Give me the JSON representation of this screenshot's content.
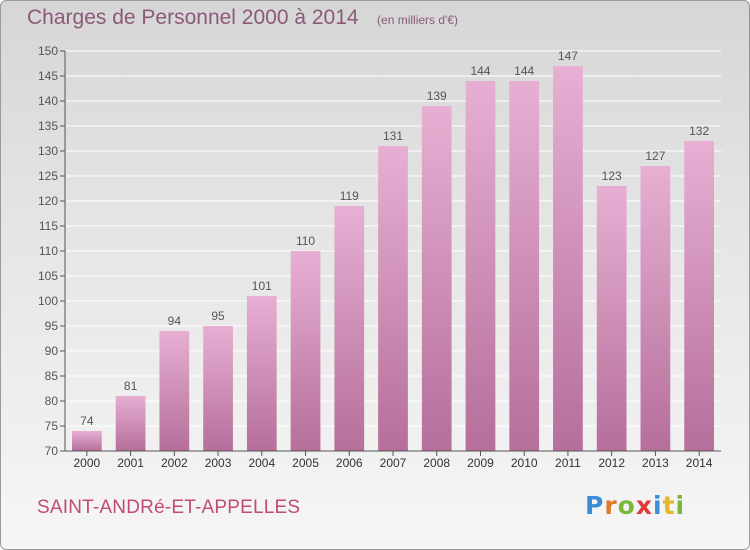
{
  "header": {
    "title": "Charges de Personnel 2000 à 2014",
    "subtitle": "(en milliers d'€)"
  },
  "footer": {
    "commune": "SAINT-ANDRé-ET-APPELLES",
    "logo_text": "Proxiti",
    "logo_colors": [
      "#3a8dd6",
      "#e07a2a",
      "#7ab83a",
      "#e03a3a",
      "#3a8dd6",
      "#e0b82a",
      "#7ab83a"
    ]
  },
  "colors": {
    "bar_top": "#e7afd3",
    "bar_bottom": "#b56f9a",
    "text": "#555555",
    "accent": "#c04a78"
  },
  "chart_data": {
    "type": "bar",
    "title": "Charges de Personnel 2000 à 2014",
    "subtitle": "(en milliers d'€)",
    "categories": [
      "2000",
      "2001",
      "2002",
      "2003",
      "2004",
      "2005",
      "2006",
      "2007",
      "2008",
      "2009",
      "2010",
      "2011",
      "2012",
      "2013",
      "2014"
    ],
    "values": [
      74,
      81,
      94,
      95,
      101,
      110,
      119,
      131,
      139,
      144,
      144,
      147,
      123,
      127,
      132
    ],
    "ylim": [
      70,
      150
    ],
    "yticks": [
      70,
      75,
      80,
      85,
      90,
      95,
      100,
      105,
      110,
      115,
      120,
      125,
      130,
      135,
      140,
      145,
      150
    ],
    "grid": true,
    "data_labels": true
  }
}
